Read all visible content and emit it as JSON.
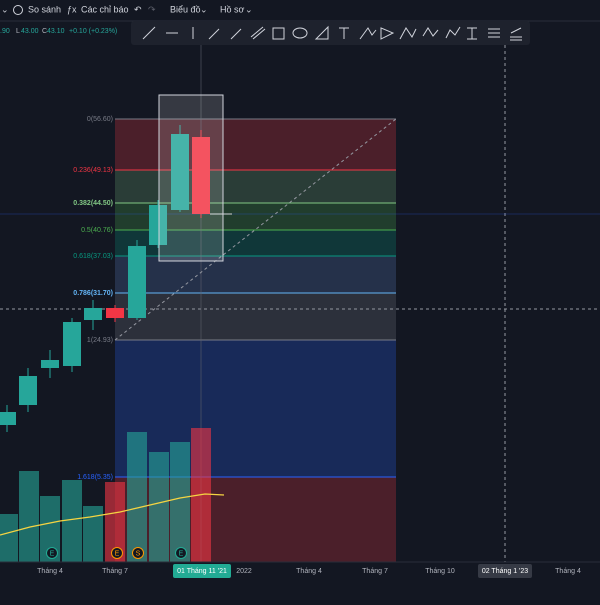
{
  "toolbar": {
    "items": [
      "So sánh",
      "Các chỉ báo",
      "Biểu đồ",
      "Hồ sơ"
    ]
  },
  "legend": {
    "ohlc": [
      ".90",
      "L",
      "43.00",
      "C",
      "43.10",
      "+0.10 (+0.23%)"
    ]
  },
  "fib_levels": [
    "0(56.60)",
    "0.236(49.13)",
    "0.382(44.50)",
    "0.5(40.76)",
    "0.618(37.03)",
    "0.786(31.70)",
    "1(24.93)",
    "1.618(5.35)"
  ],
  "x_axis": {
    "labels": [
      "Tháng 4",
      "Tháng 7",
      "2022",
      "Tháng 4",
      "Tháng 7",
      "Tháng 10",
      "Tháng 4"
    ],
    "cursor_date": "01 Tháng 11 '21",
    "crosshair_date": "02 Tháng 1 '23"
  },
  "events": [
    "E",
    "E",
    "S",
    "E"
  ]
}
